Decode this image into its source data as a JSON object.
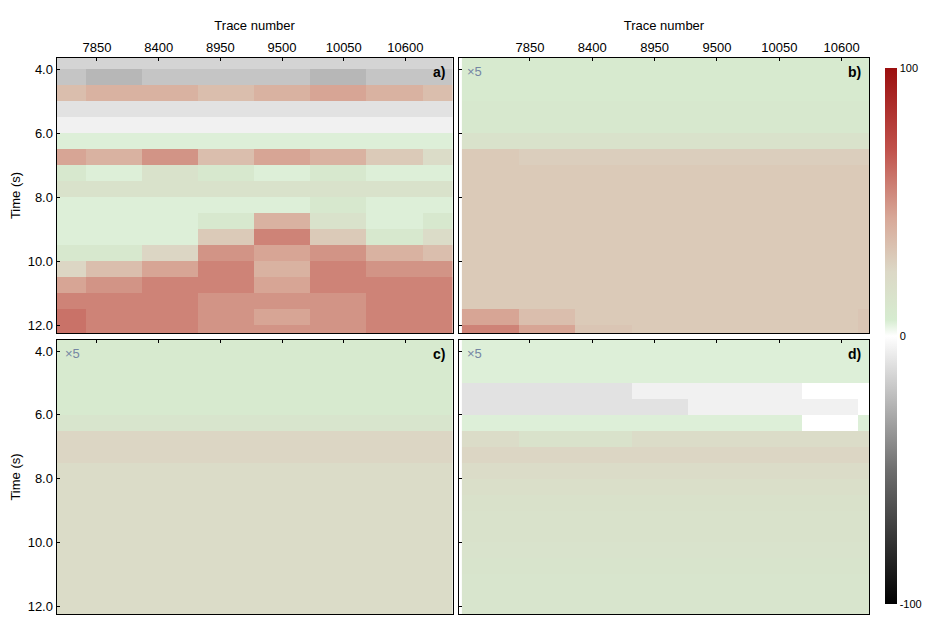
{
  "chart_data": [
    {
      "type": "heatmap",
      "label": "a)",
      "xlabel": "Trace number",
      "ylabel": "Time (s)",
      "tick_labels": true,
      "xlim": [
        7490,
        11020
      ],
      "ylim": [
        12.25,
        3.65
      ],
      "xticks": [
        7850,
        8400,
        8950,
        9500,
        10050,
        10600
      ],
      "yticks": [
        {
          "value": 4,
          "label": "4.0"
        },
        {
          "value": 6,
          "label": "6.0"
        },
        {
          "value": 8,
          "label": "8.0"
        },
        {
          "value": 10,
          "label": "10.0"
        },
        {
          "value": 12,
          "label": "12.0"
        }
      ],
      "zlim": [
        -100,
        100
      ],
      "zticks": [
        -100,
        0,
        100
      ],
      "x": [
        7500,
        8000,
        8500,
        9000,
        9500,
        10000,
        10500,
        11000
      ],
      "y": [
        3.75,
        4.25,
        4.75,
        5.25,
        5.75,
        6.25,
        6.75,
        7.25,
        7.75,
        8.25,
        8.75,
        9.25,
        9.75,
        10.25,
        10.75,
        11.25,
        11.75,
        12.25
      ],
      "z": [
        [
          -15,
          -15,
          -15,
          -15,
          -15,
          -15,
          -15,
          -15
        ],
        [
          -20,
          -25,
          -20,
          -20,
          -20,
          -25,
          -20,
          -20
        ],
        [
          35,
          40,
          40,
          35,
          40,
          45,
          40,
          35
        ],
        [
          -10,
          -10,
          -10,
          -10,
          -10,
          -10,
          -10,
          -10
        ],
        [
          -5,
          -5,
          -5,
          -5,
          -5,
          -5,
          -5,
          -5
        ],
        [
          5,
          5,
          5,
          5,
          5,
          5,
          5,
          5
        ],
        [
          45,
          40,
          50,
          35,
          45,
          40,
          30,
          20
        ],
        [
          10,
          5,
          15,
          10,
          5,
          10,
          5,
          5
        ],
        [
          15,
          15,
          15,
          15,
          15,
          15,
          15,
          15
        ],
        [
          5,
          5,
          5,
          5,
          5,
          10,
          5,
          5
        ],
        [
          5,
          5,
          5,
          10,
          40,
          15,
          5,
          10
        ],
        [
          5,
          5,
          5,
          30,
          55,
          30,
          10,
          20
        ],
        [
          10,
          10,
          25,
          50,
          45,
          50,
          40,
          35
        ],
        [
          25,
          35,
          45,
          55,
          40,
          55,
          50,
          50
        ],
        [
          45,
          50,
          55,
          55,
          45,
          55,
          55,
          55
        ],
        [
          55,
          55,
          55,
          50,
          50,
          50,
          55,
          55
        ],
        [
          60,
          55,
          55,
          50,
          45,
          50,
          55,
          55
        ],
        [
          60,
          55,
          55,
          50,
          50,
          50,
          55,
          55
        ]
      ]
    },
    {
      "type": "heatmap",
      "label": "b)",
      "annotation": "×5",
      "xlabel": "Trace number",
      "tick_labels": "x",
      "xlim": [
        7220,
        10845
      ],
      "ylim": [
        12.25,
        3.65
      ],
      "xticks": [
        7850,
        8400,
        8950,
        9500,
        10050,
        10600
      ],
      "yticks": [
        {
          "value": 4,
          "label": "4.0"
        },
        {
          "value": 6,
          "label": "6.0"
        },
        {
          "value": 8,
          "label": "8.0"
        },
        {
          "value": 10,
          "label": "10.0"
        },
        {
          "value": 12,
          "label": "12.0"
        }
      ],
      "x": [
        7500,
        8000,
        8500,
        9000,
        9500,
        10000,
        10500,
        11000
      ],
      "y": [
        3.75,
        4.25,
        4.75,
        5.25,
        5.75,
        6.25,
        6.75,
        7.25,
        7.75,
        8.25,
        8.75,
        9.25,
        9.75,
        10.25,
        10.75,
        11.25,
        11.75,
        12.25
      ],
      "z": [
        [
          8,
          8,
          8,
          8,
          8,
          8,
          8,
          8
        ],
        [
          8,
          8,
          8,
          8,
          8,
          8,
          8,
          8
        ],
        [
          8,
          8,
          8,
          8,
          8,
          8,
          8,
          8
        ],
        [
          10,
          10,
          10,
          10,
          10,
          10,
          10,
          10
        ],
        [
          10,
          10,
          10,
          10,
          10,
          10,
          10,
          10
        ],
        [
          15,
          15,
          15,
          15,
          15,
          15,
          15,
          15
        ],
        [
          30,
          28,
          28,
          28,
          28,
          28,
          28,
          28
        ],
        [
          30,
          30,
          30,
          30,
          30,
          30,
          30,
          30
        ],
        [
          30,
          30,
          30,
          30,
          30,
          30,
          30,
          30
        ],
        [
          30,
          30,
          30,
          30,
          30,
          30,
          30,
          30
        ],
        [
          30,
          30,
          30,
          30,
          30,
          30,
          30,
          30
        ],
        [
          30,
          30,
          30,
          30,
          30,
          30,
          30,
          30
        ],
        [
          30,
          30,
          30,
          30,
          30,
          30,
          30,
          30
        ],
        [
          30,
          30,
          30,
          30,
          30,
          30,
          30,
          30
        ],
        [
          30,
          30,
          30,
          30,
          30,
          30,
          30,
          30
        ],
        [
          30,
          30,
          30,
          30,
          30,
          30,
          30,
          30
        ],
        [
          45,
          35,
          30,
          30,
          30,
          30,
          30,
          32
        ],
        [
          55,
          45,
          32,
          30,
          30,
          30,
          30,
          32
        ]
      ]
    },
    {
      "type": "heatmap",
      "label": "c)",
      "annotation": "×5",
      "ylabel": "Time (s)",
      "tick_labels": "y",
      "xlim": [
        7490,
        11020
      ],
      "ylim": [
        12.25,
        3.65
      ],
      "xticks": [
        7850,
        8400,
        8950,
        9500,
        10050,
        10600
      ],
      "yticks": [
        {
          "value": 4,
          "label": "4.0"
        },
        {
          "value": 6,
          "label": "6.0"
        },
        {
          "value": 8,
          "label": "8.0"
        },
        {
          "value": 10,
          "label": "10.0"
        },
        {
          "value": 12,
          "label": "12.0"
        }
      ],
      "x": [
        7500,
        8000,
        8500,
        9000,
        9500,
        10000,
        10500,
        11000
      ],
      "y": [
        3.75,
        4.25,
        4.75,
        5.25,
        5.75,
        6.25,
        6.75,
        7.25,
        7.75,
        8.25,
        8.75,
        9.25,
        9.75,
        10.25,
        10.75,
        11.25,
        11.75,
        12.25
      ],
      "z": [
        [
          8,
          8,
          8,
          8,
          8,
          8,
          8,
          8
        ],
        [
          8,
          8,
          8,
          8,
          8,
          8,
          8,
          8
        ],
        [
          8,
          8,
          8,
          8,
          8,
          8,
          8,
          8
        ],
        [
          8,
          8,
          8,
          8,
          8,
          8,
          8,
          8
        ],
        [
          8,
          8,
          8,
          8,
          8,
          8,
          8,
          8
        ],
        [
          12,
          12,
          12,
          12,
          12,
          12,
          12,
          12
        ],
        [
          25,
          25,
          25,
          25,
          25,
          25,
          25,
          25
        ],
        [
          25,
          25,
          25,
          25,
          25,
          25,
          25,
          25
        ],
        [
          20,
          20,
          20,
          20,
          20,
          20,
          20,
          20
        ],
        [
          20,
          20,
          20,
          20,
          20,
          20,
          20,
          20
        ],
        [
          20,
          20,
          20,
          20,
          20,
          20,
          20,
          20
        ],
        [
          20,
          20,
          20,
          20,
          20,
          20,
          20,
          20
        ],
        [
          20,
          20,
          20,
          20,
          20,
          20,
          20,
          20
        ],
        [
          20,
          20,
          20,
          20,
          20,
          20,
          20,
          20
        ],
        [
          20,
          20,
          20,
          20,
          20,
          20,
          20,
          20
        ],
        [
          20,
          20,
          20,
          20,
          20,
          20,
          20,
          20
        ],
        [
          20,
          20,
          20,
          20,
          20,
          20,
          20,
          20
        ],
        [
          20,
          20,
          20,
          20,
          20,
          20,
          20,
          20
        ]
      ]
    },
    {
      "type": "heatmap",
      "label": "d)",
      "annotation": "×5",
      "tick_labels": false,
      "xlim": [
        7220,
        10845
      ],
      "ylim": [
        12.25,
        3.65
      ],
      "xticks": [
        7850,
        8400,
        8950,
        9500,
        10050,
        10600
      ],
      "yticks": [
        {
          "value": 4,
          "label": "4.0"
        },
        {
          "value": 6,
          "label": "6.0"
        },
        {
          "value": 8,
          "label": "8.0"
        },
        {
          "value": 10,
          "label": "10.0"
        },
        {
          "value": 12,
          "label": "12.0"
        }
      ],
      "x": [
        7500,
        8000,
        8500,
        9000,
        9500,
        10000,
        10500,
        11000
      ],
      "y": [
        3.75,
        4.25,
        4.75,
        5.25,
        5.75,
        6.25,
        6.75,
        7.25,
        7.75,
        8.25,
        8.75,
        9.25,
        9.75,
        10.25,
        10.75,
        11.25,
        11.75,
        12.25
      ],
      "z": [
        [
          5,
          5,
          5,
          5,
          5,
          5,
          5,
          5
        ],
        [
          5,
          5,
          5,
          5,
          5,
          5,
          5,
          5
        ],
        [
          5,
          5,
          5,
          5,
          5,
          5,
          5,
          5
        ],
        [
          -10,
          -10,
          -10,
          -5,
          -5,
          -5,
          0,
          0
        ],
        [
          -10,
          -10,
          -10,
          -10,
          -5,
          -5,
          -5,
          0
        ],
        [
          5,
          5,
          5,
          5,
          5,
          5,
          0,
          5
        ],
        [
          20,
          15,
          15,
          20,
          20,
          20,
          20,
          20
        ],
        [
          25,
          25,
          25,
          25,
          25,
          25,
          25,
          25
        ],
        [
          20,
          20,
          20,
          20,
          20,
          20,
          20,
          20
        ],
        [
          18,
          18,
          18,
          18,
          18,
          18,
          18,
          18
        ],
        [
          16,
          16,
          16,
          16,
          16,
          16,
          16,
          16
        ],
        [
          15,
          15,
          15,
          15,
          15,
          15,
          15,
          15
        ],
        [
          15,
          15,
          15,
          15,
          15,
          15,
          15,
          15
        ],
        [
          14,
          14,
          14,
          14,
          14,
          14,
          14,
          14
        ],
        [
          13,
          13,
          13,
          13,
          13,
          13,
          13,
          13
        ],
        [
          12,
          12,
          12,
          12,
          12,
          12,
          12,
          12
        ],
        [
          12,
          12,
          12,
          12,
          12,
          12,
          12,
          12
        ],
        [
          12,
          12,
          12,
          12,
          12,
          12,
          12,
          12
        ]
      ]
    }
  ]
}
